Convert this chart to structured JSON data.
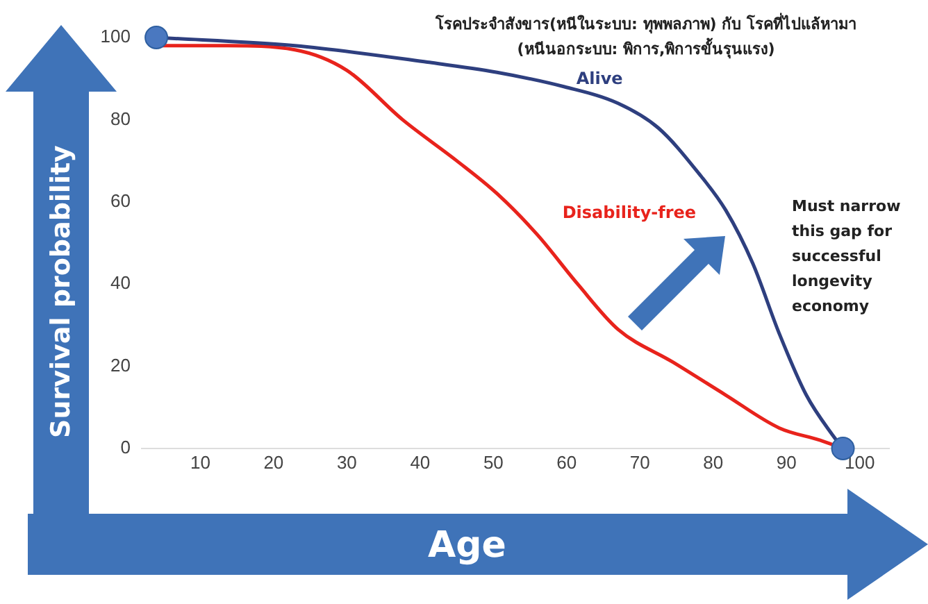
{
  "chart_data": {
    "type": "line",
    "xlabel": "Age",
    "ylabel": "Survival probability",
    "xlim": [
      2,
      104
    ],
    "xticks": [
      10,
      20,
      30,
      40,
      50,
      60,
      70,
      80,
      90,
      100
    ],
    "ylim": [
      0,
      100
    ],
    "yticks": [
      0,
      20,
      40,
      60,
      80,
      100
    ],
    "grid": false,
    "legend": false,
    "marker": "none",
    "line_style": "solid",
    "series": [
      {
        "name": "Alive",
        "color": "#2e3f7f",
        "x": [
          4,
          22.9,
          41,
          50.5,
          59.7,
          67,
          72.5,
          78,
          81.7,
          85.4,
          89,
          92.7,
          96.4,
          97.7
        ],
        "values": [
          100,
          98,
          94,
          91.5,
          88,
          84,
          78,
          67,
          58,
          45,
          28,
          13,
          3,
          0
        ]
      },
      {
        "name": "Disability-free",
        "color": "#e8231c",
        "x": [
          4,
          13.7,
          22.9,
          30,
          37.6,
          45,
          50.5,
          56,
          61.5,
          67,
          74.5,
          81.7,
          89,
          94.6,
          97.7
        ],
        "values": [
          98,
          98,
          97,
          92,
          80,
          70,
          62,
          52,
          40,
          29,
          21,
          13,
          5,
          2,
          0
        ]
      },
      {
        "type": "scatter",
        "marker": "circle",
        "color": "#4a78c0",
        "x": [
          4,
          97.7
        ],
        "values": [
          100,
          0
        ]
      }
    ],
    "annotations": [
      "โรคประจำสังขาร(หนีในระบบ: ทุพพลภาพ) กับ โรคที่ไปแล้หามา",
      "(หนีนอกระบบ: พิการ,พิการขั้นรุนแรง)",
      "Must narrow this gap for successful longevity economy"
    ]
  }
}
